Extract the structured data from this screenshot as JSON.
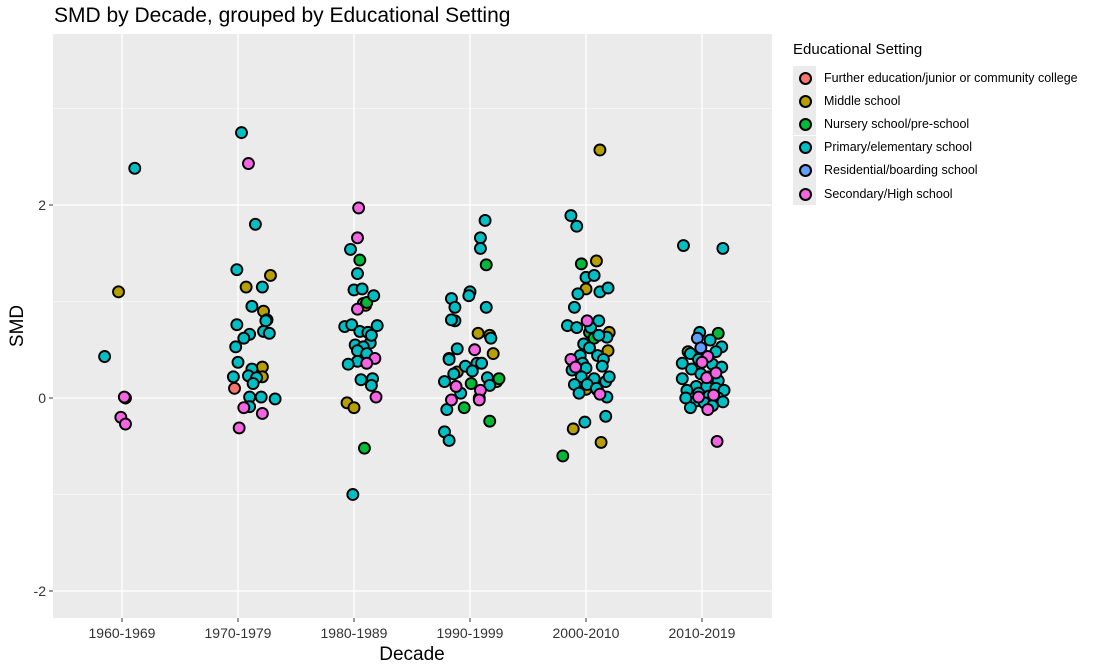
{
  "chart_data": {
    "type": "scatter",
    "title": "SMD by Decade, grouped by Educational Setting",
    "xlabel": "Decade",
    "ylabel": "SMD",
    "categories": [
      "1960-1969",
      "1970-1979",
      "1980-1989",
      "1990-1999",
      "2000-2010",
      "2010-2019"
    ],
    "y_ticks": [
      -2,
      0,
      2
    ],
    "ylim": [
      -2.3,
      3.5
    ],
    "grid": true,
    "legend": {
      "title": "Educational Setting",
      "placement": "right",
      "entries": [
        {
          "label": "Further education/junior or community college",
          "color": "#F8766D"
        },
        {
          "label": "Middle school",
          "color": "#B79F00"
        },
        {
          "label": "Nursery school/pre-school",
          "color": "#00BA38"
        },
        {
          "label": "Primary/elementary school",
          "color": "#00BFC4"
        },
        {
          "label": "Residential/boarding school",
          "color": "#619CFF"
        },
        {
          "label": "Secondary/High school",
          "color": "#F564E3"
        }
      ]
    },
    "series": [
      {
        "name": "Further education/junior or community college",
        "points": [
          [
            1.97,
            0.1
          ],
          [
            4.93,
            0.34
          ],
          [
            5.1,
            0.08
          ]
        ]
      },
      {
        "name": "Middle school",
        "points": [
          [
            0.97,
            1.1
          ],
          [
            2.07,
            1.15
          ],
          [
            2.28,
            1.27
          ],
          [
            2.22,
            0.9
          ],
          [
            2.25,
            0.81
          ],
          [
            2.21,
            0.32
          ],
          [
            2.21,
            0.22
          ],
          [
            3.08,
            0.98
          ],
          [
            3.1,
            0.96
          ],
          [
            2.94,
            -0.05
          ],
          [
            3.0,
            -0.1
          ],
          [
            3.82,
            0.41
          ],
          [
            3.89,
            0.27
          ],
          [
            4.17,
            0.65
          ],
          [
            4.2,
            0.46
          ],
          [
            4.07,
            0.67
          ],
          [
            4.23,
            0.17
          ],
          [
            5.0,
            1.13
          ],
          [
            5.09,
            1.42
          ],
          [
            5.2,
            0.68
          ],
          [
            5.19,
            0.49
          ],
          [
            5.0,
            0.09
          ],
          [
            4.89,
            -0.32
          ],
          [
            5.13,
            -0.46
          ],
          [
            5.12,
            2.57
          ],
          [
            5.88,
            0.48
          ]
        ]
      },
      {
        "name": "Nursery school/pre-school",
        "points": [
          [
            3.05,
            1.43
          ],
          [
            3.11,
            0.99
          ],
          [
            3.09,
            -0.52
          ],
          [
            4.14,
            1.38
          ],
          [
            4.01,
            0.15
          ],
          [
            4.17,
            -0.24
          ],
          [
            3.95,
            -0.1
          ],
          [
            4.25,
            0.2
          ],
          [
            4.96,
            1.39
          ],
          [
            5.03,
            0.68
          ],
          [
            5.07,
            0.62
          ],
          [
            4.8,
            -0.6
          ],
          [
            6.14,
            0.67
          ]
        ]
      },
      {
        "name": "Primary/elementary school",
        "points": [
          [
            0.85,
            0.43
          ],
          [
            1.11,
            2.38
          ],
          [
            1.03,
            0.0
          ],
          [
            2.03,
            2.75
          ],
          [
            2.15,
            1.8
          ],
          [
            1.99,
            1.33
          ],
          [
            2.21,
            1.15
          ],
          [
            2.12,
            0.95
          ],
          [
            2.24,
            0.8
          ],
          [
            1.99,
            0.76
          ],
          [
            2.22,
            0.69
          ],
          [
            2.1,
            0.66
          ],
          [
            2.27,
            0.67
          ],
          [
            1.98,
            0.53
          ],
          [
            2.05,
            0.62
          ],
          [
            2.12,
            0.3
          ],
          [
            2.0,
            0.37
          ],
          [
            2.09,
            0.23
          ],
          [
            2.16,
            0.21
          ],
          [
            1.96,
            0.22
          ],
          [
            2.13,
            0.15
          ],
          [
            2.1,
            0.01
          ],
          [
            2.2,
            0.01
          ],
          [
            2.32,
            -0.01
          ],
          [
            2.1,
            -0.09
          ],
          [
            2.97,
            1.54
          ],
          [
            3.03,
            1.29
          ],
          [
            3.0,
            1.12
          ],
          [
            3.07,
            1.13
          ],
          [
            3.17,
            1.06
          ],
          [
            2.92,
            0.74
          ],
          [
            2.98,
            0.76
          ],
          [
            3.05,
            0.69
          ],
          [
            3.12,
            0.68
          ],
          [
            3.2,
            0.75
          ],
          [
            3.01,
            0.55
          ],
          [
            3.14,
            0.57
          ],
          [
            3.08,
            0.53
          ],
          [
            3.15,
            0.65
          ],
          [
            3.03,
            0.49
          ],
          [
            3.11,
            0.46
          ],
          [
            3.03,
            0.38
          ],
          [
            2.95,
            0.35
          ],
          [
            3.16,
            0.2
          ],
          [
            3.06,
            0.19
          ],
          [
            3.15,
            0.13
          ],
          [
            2.99,
            -1.0
          ],
          [
            3.84,
            1.03
          ],
          [
            3.87,
            0.94
          ],
          [
            3.87,
            0.8
          ],
          [
            3.84,
            0.81
          ],
          [
            3.89,
            0.51
          ],
          [
            4.0,
            1.1
          ],
          [
            3.99,
            1.06
          ],
          [
            4.09,
            1.66
          ],
          [
            4.13,
            1.84
          ],
          [
            4.09,
            1.55
          ],
          [
            4.14,
            0.94
          ],
          [
            4.18,
            0.62
          ],
          [
            3.96,
            0.33
          ],
          [
            4.06,
            0.36
          ],
          [
            3.82,
            0.4
          ],
          [
            3.78,
            0.17
          ],
          [
            3.86,
            0.25
          ],
          [
            4.02,
            0.28
          ],
          [
            4.1,
            0.36
          ],
          [
            4.15,
            0.21
          ],
          [
            4.17,
            0.13
          ],
          [
            4.08,
            0.0
          ],
          [
            3.92,
            0.05
          ],
          [
            3.8,
            -0.12
          ],
          [
            3.78,
            -0.35
          ],
          [
            3.82,
            -0.44
          ],
          [
            4.87,
            1.89
          ],
          [
            4.92,
            1.78
          ],
          [
            4.93,
            1.08
          ],
          [
            5.0,
            1.25
          ],
          [
            5.07,
            1.27
          ],
          [
            5.12,
            1.1
          ],
          [
            5.19,
            1.14
          ],
          [
            5.11,
            0.8
          ],
          [
            4.9,
            0.94
          ],
          [
            4.84,
            0.75
          ],
          [
            4.92,
            0.73
          ],
          [
            5.04,
            0.73
          ],
          [
            5.18,
            0.63
          ],
          [
            5.11,
            0.65
          ],
          [
            4.98,
            0.56
          ],
          [
            5.03,
            0.52
          ],
          [
            4.95,
            0.44
          ],
          [
            5.1,
            0.44
          ],
          [
            5.15,
            0.4
          ],
          [
            4.97,
            0.36
          ],
          [
            5.14,
            0.33
          ],
          [
            5.0,
            0.31
          ],
          [
            4.88,
            0.29
          ],
          [
            4.96,
            0.22
          ],
          [
            5.07,
            0.2
          ],
          [
            5.17,
            0.17
          ],
          [
            4.9,
            0.14
          ],
          [
            5.01,
            0.14
          ],
          [
            5.09,
            0.1
          ],
          [
            5.2,
            0.22
          ],
          [
            5.18,
            0.01
          ],
          [
            4.94,
            0.05
          ],
          [
            4.99,
            -0.25
          ],
          [
            5.17,
            -0.19
          ],
          [
            5.84,
            1.58
          ],
          [
            6.18,
            1.55
          ],
          [
            5.98,
            0.68
          ],
          [
            6.07,
            0.6
          ],
          [
            6.17,
            0.53
          ],
          [
            5.9,
            0.46
          ],
          [
            5.97,
            0.4
          ],
          [
            6.09,
            0.35
          ],
          [
            6.17,
            0.32
          ],
          [
            5.91,
            0.3
          ],
          [
            5.99,
            0.25
          ],
          [
            6.06,
            0.22
          ],
          [
            6.14,
            0.18
          ],
          [
            5.83,
            0.2
          ],
          [
            5.95,
            0.12
          ],
          [
            6.04,
            0.12
          ],
          [
            6.12,
            0.1
          ],
          [
            6.19,
            0.08
          ],
          [
            5.87,
            0.08
          ],
          [
            5.97,
            0.05
          ],
          [
            6.06,
            0.02
          ],
          [
            6.14,
            0.0
          ],
          [
            5.86,
            0.0
          ],
          [
            5.95,
            -0.03
          ],
          [
            6.02,
            -0.05
          ],
          [
            6.09,
            -0.08
          ],
          [
            6.18,
            -0.04
          ],
          [
            5.9,
            -0.1
          ],
          [
            5.83,
            0.36
          ],
          [
            6.12,
            0.48
          ]
        ]
      },
      {
        "name": "Residential/boarding school",
        "points": [
          [
            5.96,
            0.62
          ],
          [
            5.99,
            0.52
          ]
        ]
      },
      {
        "name": "Secondary/High school",
        "points": [
          [
            1.02,
            0.01
          ],
          [
            0.99,
            -0.2
          ],
          [
            1.03,
            -0.27
          ],
          [
            2.09,
            2.43
          ],
          [
            2.05,
            -0.1
          ],
          [
            2.01,
            -0.31
          ],
          [
            2.21,
            -0.16
          ],
          [
            3.04,
            1.97
          ],
          [
            3.03,
            1.66
          ],
          [
            3.03,
            0.92
          ],
          [
            3.18,
            0.41
          ],
          [
            3.11,
            0.36
          ],
          [
            3.19,
            0.01
          ],
          [
            4.04,
            0.5
          ],
          [
            3.88,
            0.12
          ],
          [
            4.09,
            0.08
          ],
          [
            3.84,
            -0.02
          ],
          [
            4.08,
            -0.02
          ],
          [
            5.01,
            0.8
          ],
          [
            4.87,
            0.4
          ],
          [
            4.91,
            0.32
          ],
          [
            5.12,
            0.04
          ],
          [
            6.05,
            0.43
          ],
          [
            6.0,
            0.37
          ],
          [
            6.04,
            0.21
          ],
          [
            6.12,
            0.26
          ],
          [
            5.97,
            0.01
          ],
          [
            6.1,
            0.03
          ],
          [
            6.05,
            -0.12
          ],
          [
            6.13,
            -0.45
          ]
        ]
      }
    ]
  }
}
